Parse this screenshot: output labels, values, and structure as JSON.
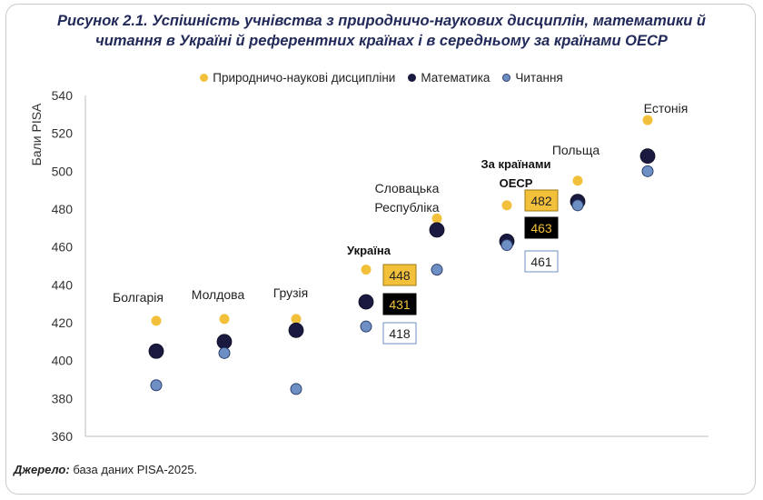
{
  "title_line1": "Рисунок 2.1. Успішність учнівства з природничо-наукових дисциплін, математики й",
  "title_line2": "читання в Україні й референтних країнах і в середньому за країнами ОЕСР",
  "legend": [
    {
      "label": "Природничо-наукові дисципліни",
      "color": "#f2c03a"
    },
    {
      "label": "Математика",
      "color": "#1a1a40"
    },
    {
      "label": "Читання",
      "color": "#6d8fc4"
    }
  ],
  "source_label": "Джерело:",
  "source_text": " база даних PISA-2025.",
  "chart_data": {
    "type": "scatter",
    "ylabel": "Бали PISA",
    "ylim": [
      360,
      540
    ],
    "yticks": [
      360,
      380,
      400,
      420,
      440,
      460,
      480,
      500,
      520,
      540
    ],
    "grid": false,
    "legend_position": "top",
    "categories": [
      "Болгарія",
      "Молдова",
      "Грузія",
      "Україна",
      "Словацька Республіка",
      "За країнами ОЕСР",
      "Польща",
      "Естонія"
    ],
    "series": [
      {
        "name": "Природничо-наукові дисципліни",
        "color": "#f2c03a",
        "values": [
          421,
          422,
          422,
          448,
          475,
          482,
          495,
          527
        ]
      },
      {
        "name": "Математика",
        "color": "#1a1a40",
        "values": [
          405,
          410,
          416,
          431,
          469,
          463,
          484,
          508
        ]
      },
      {
        "name": "Читання",
        "color": "#6d8fc4",
        "values": [
          387,
          404,
          385,
          418,
          448,
          461,
          482,
          500
        ]
      }
    ],
    "data_labels": [
      {
        "category": "Україна",
        "series": "Природничо-наукові дисципліни",
        "text": "448"
      },
      {
        "category": "Україна",
        "series": "Математика",
        "text": "431"
      },
      {
        "category": "Україна",
        "series": "Читання",
        "text": "418"
      },
      {
        "category": "За країнами ОЕСР",
        "series": "Природничо-наукові дисципліни",
        "text": "482"
      },
      {
        "category": "За країнами ОЕСР",
        "series": "Математика",
        "text": "463"
      },
      {
        "category": "За країнами ОЕСР",
        "series": "Читання",
        "text": "461"
      }
    ]
  }
}
